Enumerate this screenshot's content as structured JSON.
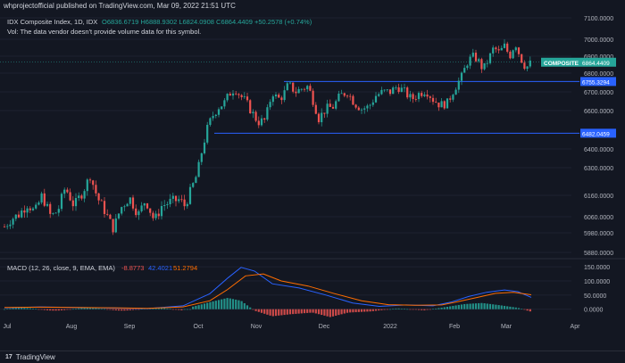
{
  "header": {
    "publisher": "whprojectofficial published on TradingView.com, Mar 09, 2022 21:51 UTC"
  },
  "legend": {
    "title": "IDX Composite Index, 1D, IDX",
    "ohlc": "O6836.6719 H6888.9302 L6824.0908 C6864.4409 +50.2578 (+0.74%)",
    "vol_note": "Vol: The data vendor doesn't provide volume data for this symbol."
  },
  "badges": {
    "symbol": "COMPOSITE",
    "last": "6864.4409",
    "level_upper": "6755.3294",
    "level_lower": "6482.0459"
  },
  "macd_legend": {
    "label": "MACD (12, 26, close, 9, EMA, EMA)",
    "hist": "-8.8773",
    "macd": "42.4021",
    "signal": "51.2794"
  },
  "footer": {
    "brand": "TradingView",
    "logo": "17"
  },
  "colors": {
    "up": "#26a69a",
    "down": "#ef5350",
    "macd": "#2962ff",
    "signal": "#ff6d00",
    "level": "#2962ff"
  },
  "chart_data": [
    {
      "type": "candlestick",
      "title": "IDX Composite Index, 1D, IDX",
      "x_tick_labels": [
        "Jul",
        "Aug",
        "Sep",
        "Oct",
        "Nov",
        "Dec",
        "2022",
        "Feb",
        "Mar",
        "Apr"
      ],
      "y_tick_labels": [
        "7100.0000",
        "7000.0000",
        "6900.0000",
        "6800.0000",
        "6700.0000",
        "6600.0000",
        "6400.0000",
        "6300.0000",
        "6160.0000",
        "6060.0000",
        "5980.0000",
        "5880.0000"
      ],
      "ylim": [
        5860,
        7110
      ],
      "last_close": 6864.4409,
      "horizontal_levels": [
        6864.4409,
        6755.3294,
        6482.0459
      ],
      "close_path": [
        [
          0,
          6010
        ],
        [
          8,
          6050
        ],
        [
          16,
          6070
        ],
        [
          26,
          6120
        ],
        [
          34,
          6080
        ],
        [
          42,
          6160
        ],
        [
          52,
          6060
        ],
        [
          60,
          6090
        ],
        [
          68,
          6200
        ],
        [
          78,
          6110
        ],
        [
          88,
          6180
        ],
        [
          96,
          6260
        ],
        [
          104,
          6150
        ],
        [
          112,
          6090
        ],
        [
          122,
          6000
        ],
        [
          130,
          6100
        ],
        [
          140,
          6150
        ],
        [
          150,
          6070
        ],
        [
          158,
          6140
        ],
        [
          168,
          6040
        ],
        [
          176,
          6110
        ],
        [
          186,
          6130
        ],
        [
          196,
          6140
        ],
        [
          202,
          6110
        ],
        [
          210,
          6200
        ],
        [
          216,
          6270
        ],
        [
          222,
          6410
        ],
        [
          228,
          6520
        ],
        [
          234,
          6580
        ],
        [
          240,
          6620
        ],
        [
          246,
          6640
        ],
        [
          252,
          6690
        ],
        [
          258,
          6720
        ],
        [
          264,
          6680
        ],
        [
          270,
          6650
        ],
        [
          276,
          6600
        ],
        [
          284,
          6540
        ],
        [
          292,
          6550
        ],
        [
          300,
          6700
        ],
        [
          306,
          6660
        ],
        [
          312,
          6680
        ],
        [
          318,
          6740
        ],
        [
          326,
          6700
        ],
        [
          334,
          6720
        ],
        [
          340,
          6730
        ],
        [
          346,
          6650
        ],
        [
          352,
          6560
        ],
        [
          360,
          6610
        ],
        [
          368,
          6620
        ],
        [
          376,
          6680
        ],
        [
          384,
          6700
        ],
        [
          392,
          6640
        ],
        [
          400,
          6610
        ],
        [
          408,
          6620
        ],
        [
          416,
          6680
        ],
        [
          424,
          6700
        ],
        [
          432,
          6700
        ],
        [
          440,
          6730
        ],
        [
          448,
          6700
        ],
        [
          456,
          6660
        ],
        [
          464,
          6690
        ],
        [
          472,
          6710
        ],
        [
          480,
          6660
        ],
        [
          488,
          6630
        ],
        [
          496,
          6640
        ],
        [
          504,
          6720
        ],
        [
          512,
          6780
        ],
        [
          518,
          6860
        ],
        [
          524,
          6900
        ],
        [
          530,
          6880
        ],
        [
          536,
          6820
        ],
        [
          542,
          6880
        ],
        [
          548,
          6950
        ],
        [
          554,
          6920
        ],
        [
          560,
          6960
        ],
        [
          566,
          6900
        ],
        [
          572,
          6980
        ],
        [
          578,
          6890
        ],
        [
          584,
          6830
        ],
        [
          590,
          6864
        ]
      ]
    },
    {
      "type": "line",
      "title": "MACD (12, 26, close, 9, EMA, EMA)",
      "y_tick_labels": [
        "150.0000",
        "100.0000",
        "50.0000",
        "0.0000"
      ],
      "ylim": [
        -20,
        160
      ],
      "series": [
        {
          "name": "MACD",
          "values": [
            [
              0,
              5
            ],
            [
              40,
              8
            ],
            [
              80,
              6
            ],
            [
              120,
              4
            ],
            [
              160,
              2
            ],
            [
              200,
              12
            ],
            [
              230,
              55
            ],
            [
              250,
              110
            ],
            [
              265,
              148
            ],
            [
              280,
              135
            ],
            [
              300,
              90
            ],
            [
              330,
              75
            ],
            [
              360,
              50
            ],
            [
              390,
              22
            ],
            [
              420,
              10
            ],
            [
              450,
              15
            ],
            [
              480,
              12
            ],
            [
              500,
              25
            ],
            [
              520,
              45
            ],
            [
              540,
              60
            ],
            [
              560,
              68
            ],
            [
              575,
              62
            ],
            [
              590,
              42
            ]
          ]
        },
        {
          "name": "Signal",
          "values": [
            [
              0,
              6
            ],
            [
              40,
              7
            ],
            [
              80,
              6
            ],
            [
              120,
              5
            ],
            [
              160,
              3
            ],
            [
              200,
              8
            ],
            [
              230,
              30
            ],
            [
              250,
              70
            ],
            [
              270,
              118
            ],
            [
              290,
              125
            ],
            [
              310,
              100
            ],
            [
              340,
              82
            ],
            [
              370,
              55
            ],
            [
              400,
              30
            ],
            [
              430,
              16
            ],
            [
              460,
              14
            ],
            [
              490,
              15
            ],
            [
              510,
              28
            ],
            [
              530,
              42
            ],
            [
              550,
              56
            ],
            [
              570,
              60
            ],
            [
              590,
              51
            ]
          ]
        }
      ],
      "histogram": [
        [
          210,
          8
        ],
        [
          230,
          25
        ],
        [
          250,
          40
        ],
        [
          265,
          30
        ],
        [
          280,
          -5
        ],
        [
          300,
          -25
        ],
        [
          320,
          -18
        ],
        [
          345,
          -12
        ],
        [
          365,
          -28
        ],
        [
          385,
          -12
        ],
        [
          410,
          -8
        ],
        [
          440,
          3
        ],
        [
          470,
          -4
        ],
        [
          495,
          8
        ],
        [
          515,
          18
        ],
        [
          535,
          22
        ],
        [
          555,
          14
        ],
        [
          575,
          5
        ],
        [
          590,
          -9
        ]
      ]
    }
  ]
}
